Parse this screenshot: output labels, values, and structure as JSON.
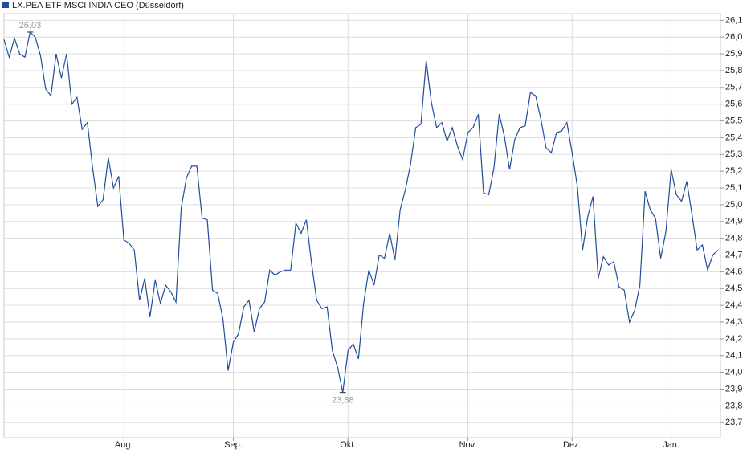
{
  "chart_data": {
    "type": "line",
    "series": [
      {
        "name": "LX.PEA ETF MSCI INDIA CEO (Düsseldorf)",
        "color": "#1f4e9c",
        "values": [
          25.985,
          25.88,
          25.995,
          25.9,
          25.88,
          26.03,
          26.0,
          25.89,
          25.69,
          25.65,
          25.9,
          25.755,
          25.9,
          25.6,
          25.64,
          25.45,
          25.49,
          25.22,
          24.99,
          25.03,
          25.28,
          25.1,
          25.17,
          24.79,
          24.77,
          24.73,
          24.43,
          24.56,
          24.33,
          24.55,
          24.41,
          24.52,
          24.48,
          24.42,
          24.98,
          25.16,
          25.23,
          25.23,
          24.92,
          24.91,
          24.49,
          24.47,
          24.32,
          24.01,
          24.18,
          24.23,
          24.39,
          24.43,
          24.24,
          24.38,
          24.42,
          24.61,
          24.58,
          24.6,
          24.61,
          24.61,
          24.89,
          24.83,
          24.91,
          24.65,
          24.43,
          24.38,
          24.39,
          24.13,
          24.03,
          23.88,
          24.13,
          24.17,
          24.08,
          24.41,
          24.61,
          24.52,
          24.7,
          24.68,
          24.83,
          24.67,
          24.97,
          25.09,
          25.24,
          25.46,
          25.48,
          25.86,
          25.61,
          25.46,
          25.49,
          25.38,
          25.46,
          25.35,
          25.27,
          25.43,
          25.46,
          25.54,
          25.07,
          25.06,
          25.22,
          25.54,
          25.41,
          25.21,
          25.39,
          25.46,
          25.47,
          25.67,
          25.65,
          25.51,
          25.34,
          25.31,
          25.43,
          25.44,
          25.49,
          25.31,
          25.11,
          24.73,
          24.93,
          25.05,
          24.56,
          24.69,
          24.64,
          24.66,
          24.51,
          24.49,
          24.3,
          24.37,
          24.52,
          25.08,
          24.97,
          24.92,
          24.68,
          24.84,
          25.21,
          25.06,
          25.02,
          25.14,
          24.94,
          24.73,
          24.76,
          24.61,
          24.7,
          24.73
        ]
      }
    ],
    "categories": [
      null,
      null,
      null,
      null,
      null,
      null,
      null,
      null,
      null,
      null,
      null,
      null,
      null,
      null,
      null,
      null,
      null,
      null,
      null,
      null,
      null,
      null,
      null,
      "Aug.",
      null,
      null,
      null,
      null,
      null,
      null,
      null,
      null,
      null,
      null,
      null,
      null,
      null,
      null,
      null,
      null,
      null,
      null,
      null,
      null,
      "Sep.",
      null,
      null,
      null,
      null,
      null,
      null,
      null,
      null,
      null,
      null,
      null,
      null,
      null,
      null,
      null,
      null,
      null,
      null,
      null,
      null,
      null,
      "Okt.",
      null,
      null,
      null,
      null,
      null,
      null,
      null,
      null,
      null,
      null,
      null,
      null,
      null,
      null,
      null,
      null,
      null,
      null,
      null,
      null,
      null,
      null,
      "Nov.",
      null,
      null,
      null,
      null,
      null,
      null,
      null,
      null,
      null,
      null,
      null,
      null,
      null,
      null,
      null,
      null,
      null,
      null,
      null,
      "Dez.",
      null,
      null,
      null,
      null,
      null,
      null,
      null,
      null,
      null,
      null,
      null,
      null,
      null,
      null,
      null,
      null,
      null,
      null,
      "Jan.",
      null,
      null,
      null,
      null,
      null,
      null,
      null,
      null,
      null
    ],
    "max_label": "26,03",
    "min_label": "23,88",
    "ylim": [
      23.61,
      26.14
    ],
    "yticks": [
      {
        "value": 23.7,
        "label": "23,7"
      },
      {
        "value": 23.8,
        "label": "23,8"
      },
      {
        "value": 23.9,
        "label": "23,9"
      },
      {
        "value": 24.0,
        "label": "24,0"
      },
      {
        "value": 24.1,
        "label": "24,1"
      },
      {
        "value": 24.2,
        "label": "24,2"
      },
      {
        "value": 24.3,
        "label": "24,3"
      },
      {
        "value": 24.4,
        "label": "24,4"
      },
      {
        "value": 24.5,
        "label": "24,5"
      },
      {
        "value": 24.6,
        "label": "24,6"
      },
      {
        "value": 24.7,
        "label": "24,7"
      },
      {
        "value": 24.8,
        "label": "24,8"
      },
      {
        "value": 24.9,
        "label": "24,9"
      },
      {
        "value": 25.0,
        "label": "25,0"
      },
      {
        "value": 25.1,
        "label": "25,1"
      },
      {
        "value": 25.2,
        "label": "25,2"
      },
      {
        "value": 25.3,
        "label": "25,3"
      },
      {
        "value": 25.4,
        "label": "25,4"
      },
      {
        "value": 25.5,
        "label": "25,5"
      },
      {
        "value": 25.6,
        "label": "25,6"
      },
      {
        "value": 25.7,
        "label": "25,7"
      },
      {
        "value": 25.8,
        "label": "25,8"
      },
      {
        "value": 25.9,
        "label": "25,9"
      },
      {
        "value": 26.0,
        "label": "26,0"
      },
      {
        "value": 26.1,
        "label": "26,1"
      }
    ],
    "grid": true
  }
}
